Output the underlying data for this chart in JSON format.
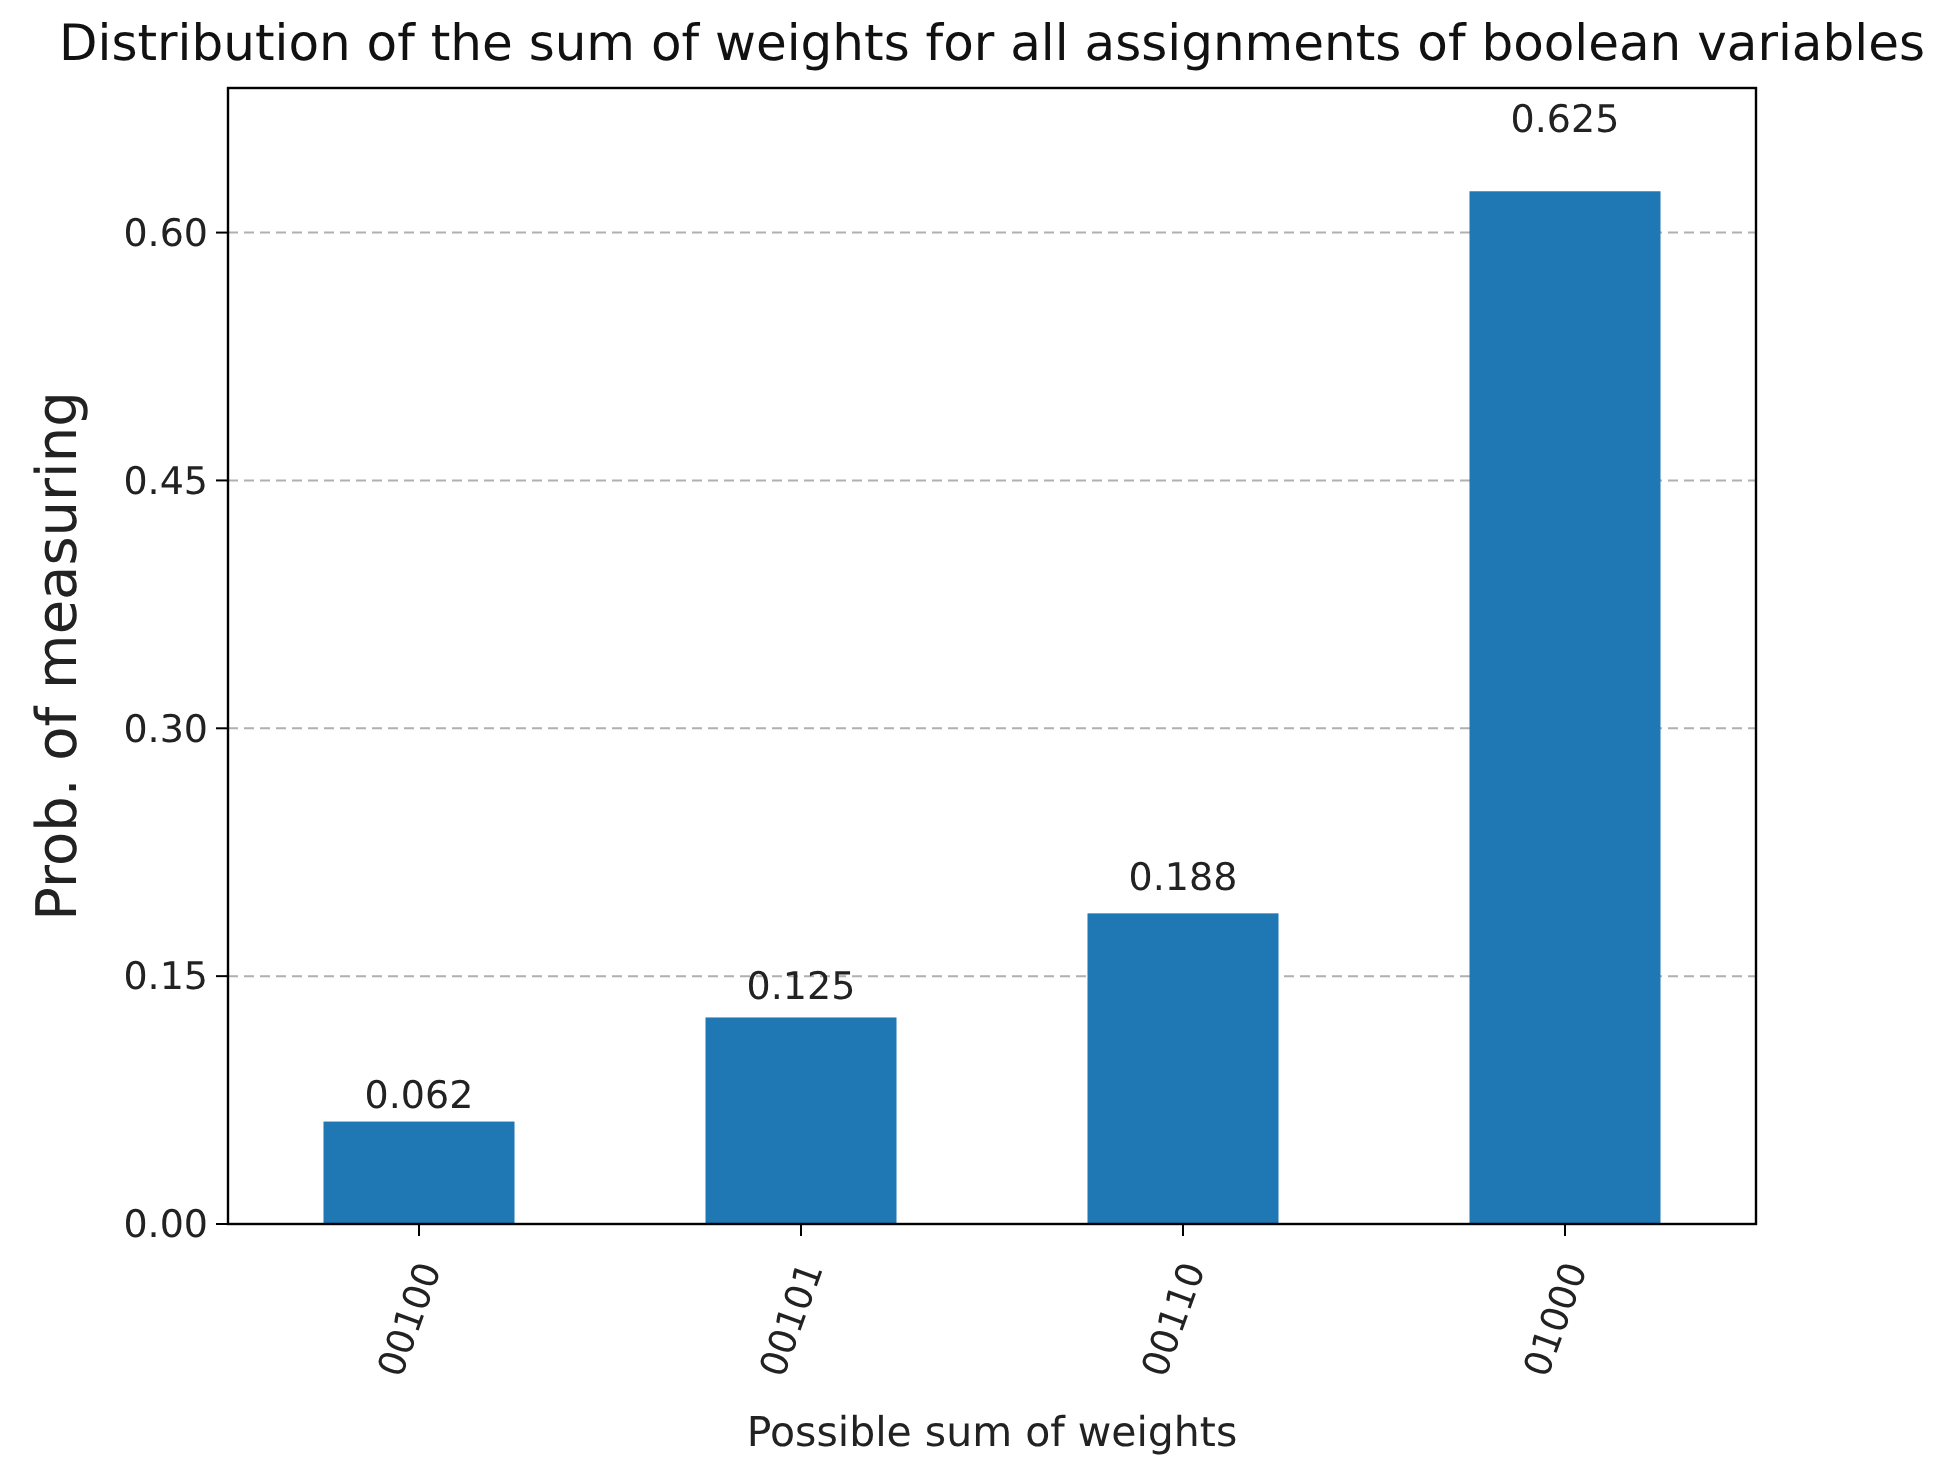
{
  "chart_data": {
    "type": "bar",
    "title": "Distribution of the sum of weights for all assignments of boolean variables",
    "xlabel": "Possible sum of weights",
    "ylabel": "Prob. of measuring",
    "categories": [
      "00100",
      "00101",
      "00110",
      "01000"
    ],
    "values": [
      0.062,
      0.125,
      0.188,
      0.625
    ],
    "color": "#1f77b4",
    "ylim": [
      0,
      0.6875
    ],
    "yticks": [
      {
        "value": 0,
        "label": "0.00"
      },
      {
        "value": 0.15,
        "label": "0.15"
      },
      {
        "value": 0.3,
        "label": "0.30"
      },
      {
        "value": 0.45,
        "label": "0.45"
      },
      {
        "value": 0.6,
        "label": "0.60"
      }
    ],
    "grid": "y",
    "data_labels": true
  }
}
